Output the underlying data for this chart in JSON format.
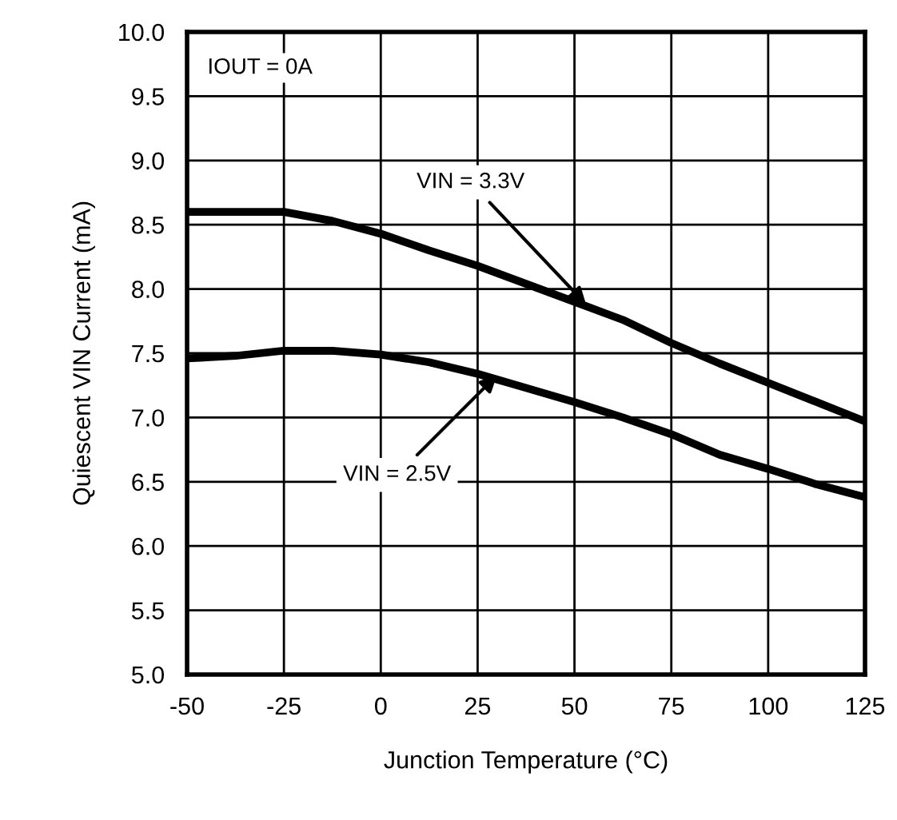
{
  "chart_data": {
    "type": "line",
    "xlabel": "Junction Temperature (°C)",
    "ylabel": "Quiescent VIN Current (mA)",
    "xlim": [
      -50,
      125
    ],
    "xticks": [
      -50,
      -25,
      0,
      25,
      50,
      75,
      100,
      125
    ],
    "ylim": [
      5.0,
      10.0
    ],
    "yticks": [
      {
        "value": 5.0,
        "label": "5.0"
      },
      {
        "value": 5.5,
        "label": "5.5"
      },
      {
        "value": 6.0,
        "label": "6.0"
      },
      {
        "value": 6.5,
        "label": "6.5"
      },
      {
        "value": 7.0,
        "label": "7.0"
      },
      {
        "value": 7.5,
        "label": "7.5"
      },
      {
        "value": 8.0,
        "label": "8.0"
      },
      {
        "value": 8.5,
        "label": "8.5"
      },
      {
        "value": 9.0,
        "label": "9.0"
      },
      {
        "value": 9.5,
        "label": "9.5"
      },
      {
        "value": 10.0,
        "label": "10.0"
      }
    ],
    "grid": true,
    "line_style": "solid",
    "marker": "none",
    "series": [
      {
        "color": "#000000",
        "x": [
          -50,
          -25,
          -12.5,
          0,
          12.5,
          25,
          37.5,
          50,
          62.5,
          75,
          87.5,
          100,
          112.5,
          125
        ],
        "values": [
          8.6,
          8.6,
          8.53,
          8.43,
          8.3,
          8.18,
          8.04,
          7.9,
          7.76,
          7.58,
          7.42,
          7.27,
          7.12,
          6.97
        ]
      },
      {
        "color": "#000000",
        "x": [
          -50,
          -37.5,
          -25,
          -12.5,
          0,
          12.5,
          25,
          37.5,
          50,
          62.5,
          75,
          87.5,
          100,
          112.5,
          125
        ],
        "values": [
          7.46,
          7.48,
          7.52,
          7.52,
          7.49,
          7.43,
          7.34,
          7.23,
          7.12,
          7.0,
          6.87,
          6.71,
          6.6,
          6.48,
          6.38
        ]
      }
    ],
    "annotations": [
      "IOUT = 0A",
      {
        "text": "VIN = 3.3V",
        "x": 53,
        "y": 7.88
      },
      {
        "text": "VIN = 2.5V",
        "x": 30,
        "y": 7.33
      }
    ]
  }
}
